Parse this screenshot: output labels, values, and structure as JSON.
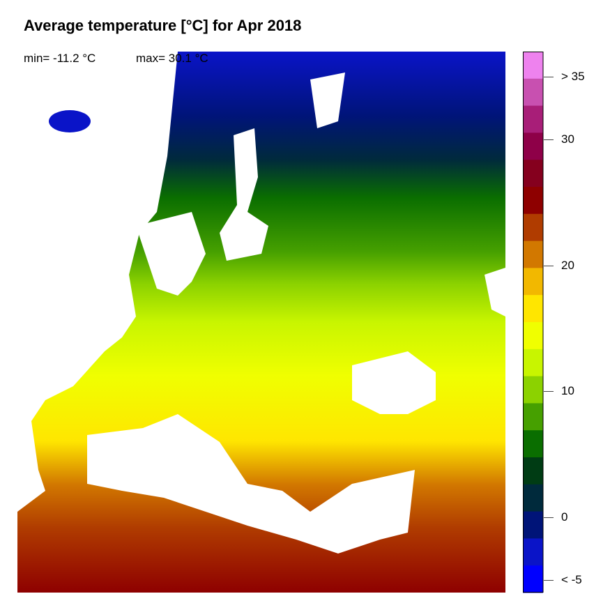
{
  "title": "Average temperature [°C] for Apr 2018",
  "min_label": "min= -11.2 °C",
  "max_label": "max= 30.1 °C",
  "colorbar": {
    "colors": [
      "#EE82EE",
      "#C850B0",
      "#A81E78",
      "#8E0048",
      "#85001E",
      "#8E0000",
      "#B03C00",
      "#D27800",
      "#F2B800",
      "#FFE600",
      "#F0FF00",
      "#C8F500",
      "#8CD200",
      "#46A000",
      "#0A6E00",
      "#003C14",
      "#002A3C",
      "#001478",
      "#0A14C8",
      "#0000FF"
    ],
    "ticks": [
      {
        "label": "> 35",
        "value": 35
      },
      {
        "label": "30",
        "value": 30
      },
      {
        "label": "20",
        "value": 20
      },
      {
        "label": "10",
        "value": 10
      },
      {
        "label": "0",
        "value": 0
      },
      {
        "label": "< -5",
        "value": -5
      }
    ],
    "range": [
      -6,
      37
    ]
  }
}
